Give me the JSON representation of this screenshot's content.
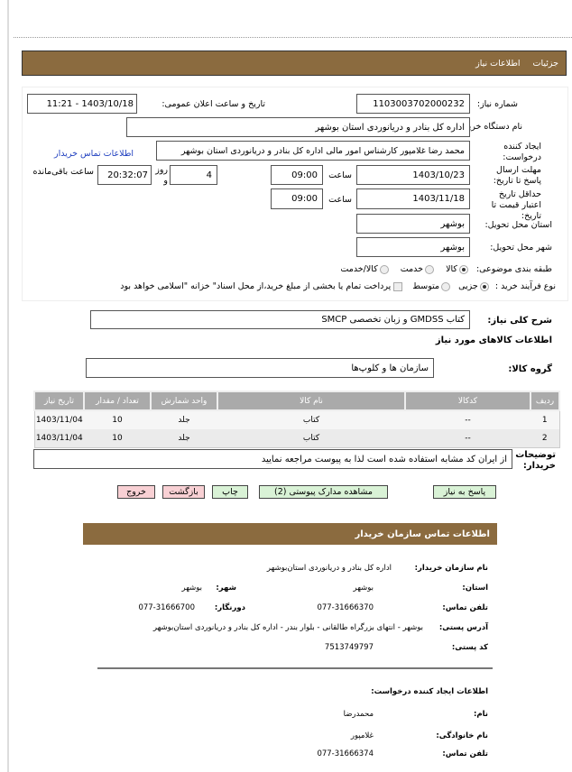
{
  "header": {
    "tab1": "جزئیات",
    "tab2": "اطلاعات نیاز"
  },
  "form": {
    "need_no_label": "شماره نیاز:",
    "need_no": "1103003702000232",
    "announce_label": "تاریخ و ساعت اعلان عمومی:",
    "announce": "1403/10/18 - 11:21",
    "buyer_label": "نام دستگاه خریدار:",
    "buyer": "اداره کل بنادر و  دریانوردی استان بوشهر",
    "creator_label": "ایجاد کننده درخواست:",
    "creator": "محمد رضا غلامپور کارشناس امور مالی اداره کل بنادر و  دریانوردی استان بوشهر",
    "contact_link": "اطلاعات تماس خریدار",
    "deadline_label": "مهلت ارسال پاسخ تا تاریخ:",
    "deadline_date": "1403/10/23",
    "hour_label": "ساعت",
    "deadline_time": "09:00",
    "days": "4",
    "days_label": "روز و",
    "remaining": "20:32:07",
    "remaining_label": "ساعت باقی‌مانده",
    "validity_label": "حداقل تاریخ اعتبار قیمت تا تاریخ:",
    "validity_date": "1403/11/18",
    "validity_time": "09:00",
    "province_label": "استان محل تحویل:",
    "province": "بوشهر",
    "city_label": "شهر محل تحویل:",
    "city": "بوشهر",
    "category_label": "طبقه بندی موضوعی:",
    "cat_options": [
      "کالا",
      "خدمت",
      "کالا/خدمت"
    ],
    "process_label": "نوع فرآیند خرید :",
    "proc_options": [
      "جزیی",
      "متوسط"
    ],
    "payment_note": "پرداخت تمام یا بخشی از مبلغ خرید،از محل اسناد\" خزانه \"اسلامی خواهد بود"
  },
  "summary": {
    "label": "شرح کلی نیاز:",
    "value": "کتاب GMDSS و زبان  تخصصی SMCP"
  },
  "goods_title": "اطلاعات کالاهای مورد نیاز",
  "group": {
    "label": "گروه کالا:",
    "value": "سازمان ها و کلوپ‌ها"
  },
  "table": {
    "headers": [
      "ردیف",
      "کدکالا",
      "نام کالا",
      "واحد شمارش",
      "تعداد / مقدار",
      "تاریخ نیاز"
    ],
    "rows": [
      [
        "1",
        "--",
        "کتاب",
        "جلد",
        "10",
        "1403/11/04"
      ],
      [
        "2",
        "--",
        "کتاب",
        "جلد",
        "10",
        "1403/11/04"
      ]
    ]
  },
  "notes": {
    "label": "توضیحات خریدار:",
    "value": "از ایران کد مشابه استفاده شده است لذا به پیوست مراجعه نمایید"
  },
  "buttons": {
    "reply": "پاسخ به نیاز",
    "docs": "مشاهده مدارک پیوستی (2)",
    "print": "چاپ",
    "back": "بازگشت",
    "exit": "خروج"
  },
  "contact": {
    "title": "اطلاعات تماس سازمان خریدار",
    "org_label": "نام سازمان خریدار:",
    "org": "اداره کل بنادر و دریانوردی استان‌بوشهر",
    "prov_label": "استان:",
    "prov": "بوشهر",
    "city_label": "شهر:",
    "city": "بوشهر",
    "phone_label": "تلفن تماس:",
    "phone": "077-31666370",
    "fax_label": "دورنگار:",
    "fax": "077-31666700",
    "addr_label": "آدرس پستی:",
    "addr": "بوشهر - انتهای بزرگراه طالقانی - بلوار بندر - اداره کل بنادر و دریانوردی استان‌بوشهر",
    "post_label": "کد پستی:",
    "post": "7513749797"
  },
  "creator": {
    "title": "اطلاعات ایجاد کننده درخواست:",
    "name_label": "نام:",
    "name": "محمدرضا",
    "family_label": "نام خانوادگی:",
    "family": "غلامپور",
    "phone_label": "تلفن تماس:",
    "phone": "077-31666374"
  },
  "colors": {
    "brand": "#8b6b3f",
    "green_btn": "#d9f2d6",
    "pink_btn": "#f8d0d4"
  }
}
